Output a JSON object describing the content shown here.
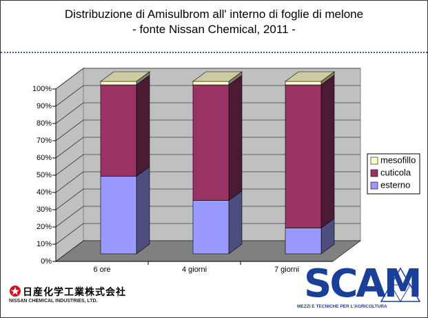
{
  "title": "Distribuzione di Amisulbrom all' interno di foglie di melone",
  "subtitle": "- fonte Nissan Chemical, 2011 -",
  "chart_data": {
    "type": "bar3d_stacked",
    "categories": [
      "6 ore",
      "4 giorni",
      "7 giorni"
    ],
    "series": [
      {
        "name": "esterno",
        "color": "#9999ff",
        "values": [
          45,
          31,
          15
        ]
      },
      {
        "name": "cuticola",
        "color": "#993366",
        "values": [
          53,
          67,
          83
        ]
      },
      {
        "name": "mesofillo",
        "color": "#ffffcc",
        "values": [
          2,
          2,
          2
        ]
      }
    ],
    "ylim": [
      0,
      100
    ],
    "yticks": [
      {
        "value": 0,
        "label": "0%"
      },
      {
        "value": 10,
        "label": "10%"
      },
      {
        "value": 20,
        "label": "20%"
      },
      {
        "value": 30,
        "label": "30%"
      },
      {
        "value": 40,
        "label": "40%"
      },
      {
        "value": 50,
        "label": "50%"
      },
      {
        "value": 60,
        "label": "60%"
      },
      {
        "value": 70,
        "label": "70%"
      },
      {
        "value": 80,
        "label": "80%"
      },
      {
        "value": 90,
        "label": "90%"
      },
      {
        "value": 100,
        "label": "100%"
      }
    ],
    "grid": true,
    "legend": "right"
  },
  "logos": {
    "nissan_jp": "日産化学工業株式会社",
    "nissan_en": "NISSAN CHEMICAL INDUSTRIES, LTD.",
    "scam": "SCAM",
    "scam_sub": "MEZZI E TECNICHE PER L'AGRICOLTURA"
  }
}
